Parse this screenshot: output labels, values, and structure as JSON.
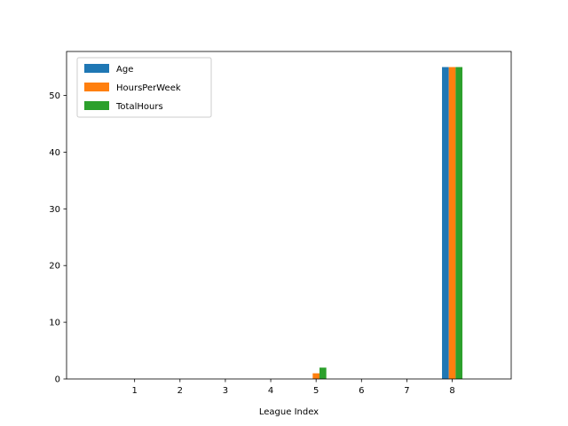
{
  "chart_data": {
    "type": "bar",
    "title": "",
    "xlabel": "League Index",
    "ylabel": "",
    "categories": [
      "1",
      "2",
      "3",
      "4",
      "5",
      "6",
      "7",
      "8"
    ],
    "series": [
      {
        "name": "Age",
        "color": "#1f77b4",
        "values": [
          0,
          0,
          0,
          0,
          0,
          0,
          0,
          55
        ]
      },
      {
        "name": "HoursPerWeek",
        "color": "#ff7f0e",
        "values": [
          0,
          0,
          0,
          0,
          1,
          0,
          0,
          55
        ]
      },
      {
        "name": "TotalHours",
        "color": "#2ca02c",
        "values": [
          0,
          0,
          0,
          0,
          2,
          0,
          0,
          55
        ]
      }
    ],
    "xlim": [
      -0.5,
      9.3
    ],
    "ylim": [
      0,
      57.75
    ],
    "yticks": [
      0,
      10,
      20,
      30,
      40,
      50
    ],
    "grid": false,
    "legend_position": "top-left"
  }
}
